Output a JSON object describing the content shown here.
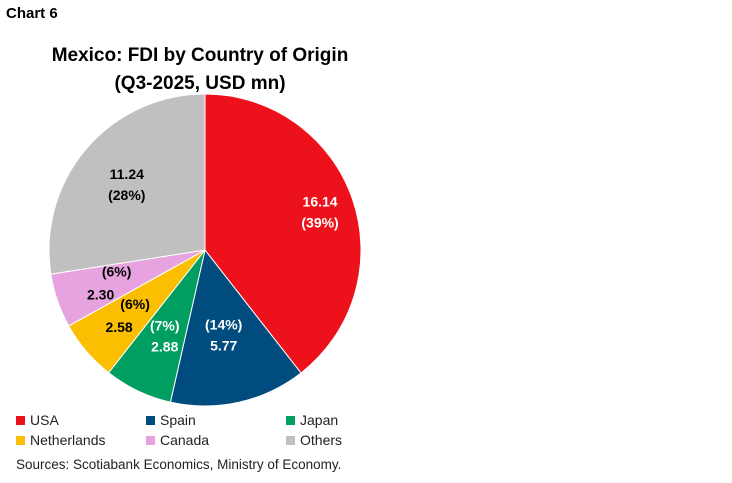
{
  "chart_number": "Chart 6",
  "chart_data": {
    "type": "pie",
    "title": "Mexico: FDI by Country of Origin",
    "subtitle": "(Q3-2025, USD mn)",
    "slices": [
      {
        "name": "USA",
        "value": 16.14,
        "value_label": "16.14",
        "pct_label": "(39%)",
        "color": "#ec111a",
        "label_color": "#ffffff"
      },
      {
        "name": "Spain",
        "value": 5.77,
        "value_label": "5.77",
        "pct_label": "(14%)",
        "color": "#004c7e",
        "label_color": "#ffffff"
      },
      {
        "name": "Japan",
        "value": 2.88,
        "value_label": "2.88",
        "pct_label": "(7%)",
        "color": "#009e60",
        "label_color": "#ffffff"
      },
      {
        "name": "Netherlands",
        "value": 2.58,
        "value_label": "2.58",
        "pct_label": "(6%)",
        "color": "#fbbe00",
        "label_color": "#000000"
      },
      {
        "name": "Canada",
        "value": 2.3,
        "value_label": "2.30",
        "pct_label": "(6%)",
        "color": "#e6a3df",
        "label_color": "#000000"
      },
      {
        "name": "Others",
        "value": 11.24,
        "value_label": "11.24",
        "pct_label": "(28%)",
        "color": "#c0c0c0",
        "label_color": "#000000"
      }
    ],
    "legend_position": "bottom"
  },
  "source_note": "Sources: Scotiabank Economics, Ministry of Economy."
}
